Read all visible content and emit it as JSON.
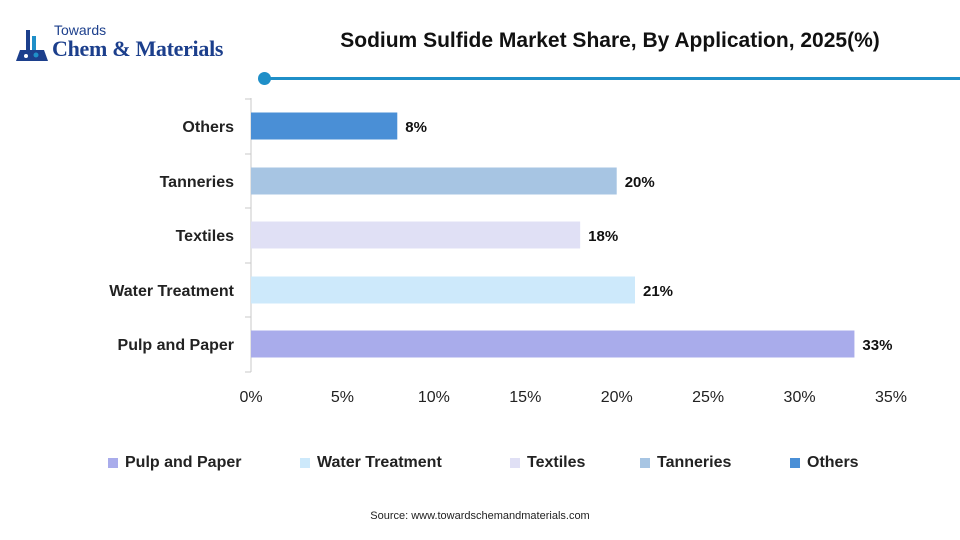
{
  "brand": {
    "small": "Towards",
    "big": "Chem & Materials"
  },
  "colors": {
    "accent": "#1f8fc8",
    "brand": "#1c3f8c"
  },
  "chart_data": {
    "type": "bar",
    "orientation": "horizontal",
    "title": "Sodium Sulfide Market Share, By Application, 2025(%)",
    "categories": [
      "Pulp and Paper",
      "Water Treatment",
      "Textiles",
      "Tanneries",
      "Others"
    ],
    "values": [
      33,
      21,
      18,
      20,
      8
    ],
    "value_labels": [
      "33%",
      "21%",
      "18%",
      "20%",
      "8%"
    ],
    "bar_colors": [
      "#a9aceb",
      "#cde9fb",
      "#e0e0f5",
      "#a7c5e3",
      "#4a8fd6"
    ],
    "xlim": [
      0,
      35
    ],
    "xticks": [
      0,
      5,
      10,
      15,
      20,
      25,
      30,
      35
    ],
    "xtick_labels": [
      "0%",
      "5%",
      "10%",
      "15%",
      "20%",
      "25%",
      "30%",
      "35%"
    ],
    "grid": false,
    "legend": {
      "placement": "bottom",
      "entries": [
        "Pulp and Paper",
        "Water Treatment",
        "Textiles",
        "Tanneries",
        "Others"
      ]
    }
  },
  "source": "Source: www.towardschemandmaterials.com"
}
